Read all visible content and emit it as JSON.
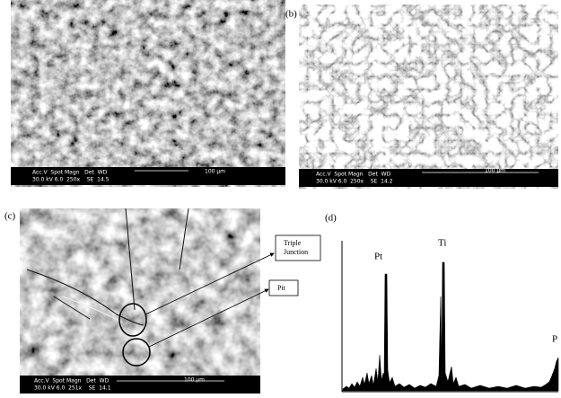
{
  "panels": {
    "a": {
      "info": {
        "row1": "Acc.V  Spot Magn   Det  WD",
        "row2": "30.0 kV 6.0  250x    SE  14.5",
        "scale": "100 μm"
      }
    },
    "b": {
      "label": "(b)",
      "info": {
        "row1": "Acc.V  Spot Magn   Det  WD",
        "row2": "30.0 kV 6.0  250x    SE  14.2",
        "scale": "100 μm"
      }
    },
    "c": {
      "label": "(c)",
      "info": {
        "row1": "Acc.V  Spot Magn   Det  WD",
        "row2": "30.0 kV 6.0  251x    SE  14.1",
        "scale": "100 μm"
      },
      "triple_junction": [
        "Triple",
        "Junction"
      ],
      "pit": "Pit"
    },
    "d": {
      "label": "(d)",
      "peaks": [
        "Pt",
        "Ti",
        "P"
      ]
    }
  }
}
